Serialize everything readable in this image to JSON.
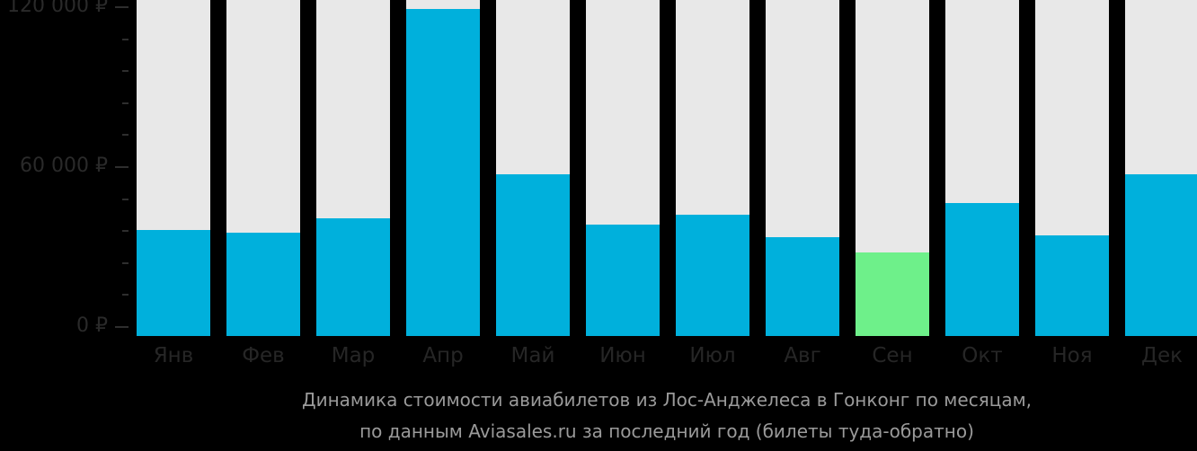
{
  "chart_data": {
    "type": "bar",
    "title": "Динамика стоимости авиабилетов из Лос-Анджелеса в Гонконг по месяцам,",
    "subtitle": "по данным Aviasales.ru за последний год (билеты туда-обратно)",
    "xlabel": "",
    "ylabel": "",
    "currency": "₽",
    "categories": [
      "Янв",
      "Фев",
      "Мар",
      "Апр",
      "Май",
      "Июн",
      "Июл",
      "Авг",
      "Сен",
      "Окт",
      "Ноя",
      "Дек"
    ],
    "values": [
      36400,
      35400,
      40800,
      119400,
      57300,
      38400,
      42100,
      33700,
      28000,
      46500,
      34400,
      57300
    ],
    "ylim": [
      0,
      120000
    ],
    "yticks": [
      {
        "value": 0,
        "label": "0 ₽"
      },
      {
        "value": 60000,
        "label": "60 000 ₽"
      },
      {
        "value": 120000,
        "label": "120 000 ₽"
      }
    ],
    "minor_ticks_per_interval": 4,
    "highlight_index": 8,
    "colors": {
      "bar": "#00b0dc",
      "bar_lowest": "#6ef08a",
      "bar_background": "#e8e8e8",
      "background": "#000000",
      "axis_text": "#2a2a2a",
      "caption_text": "#9a9a9a"
    },
    "grid": false,
    "legend": "none"
  }
}
